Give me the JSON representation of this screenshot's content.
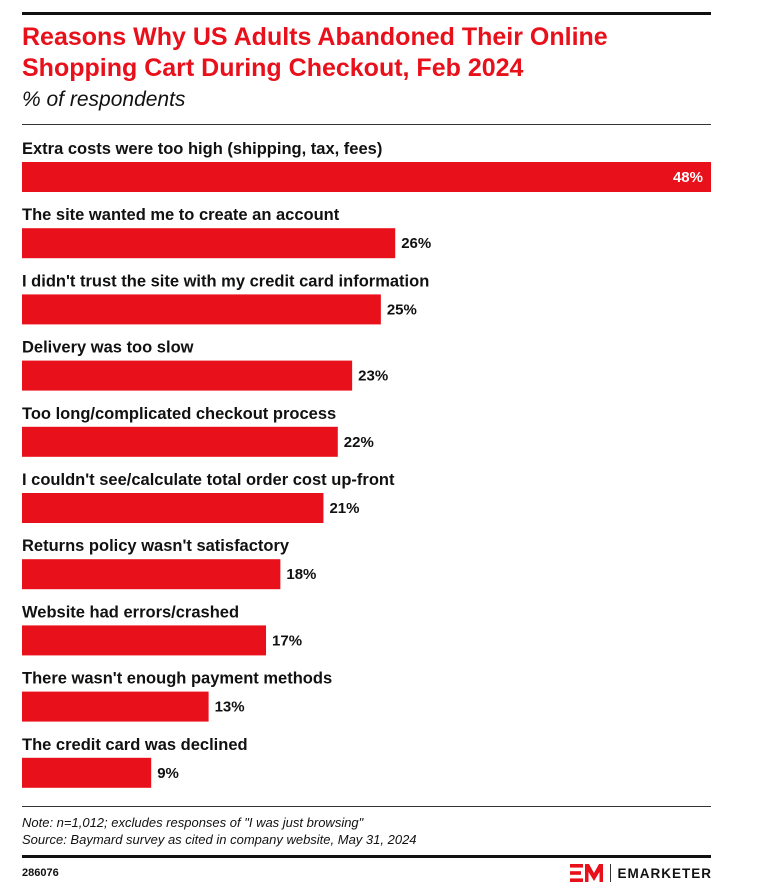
{
  "header": {
    "title": "Reasons Why US Adults Abandoned Their Online Shopping Cart During Checkout, Feb 2024",
    "subtitle": "% of respondents"
  },
  "footer": {
    "note": "Note: n=1,012; excludes responses of \"I was just browsing\"",
    "source": "Source: Baymard survey as cited in company website, May 31, 2024",
    "chart_id": "286076",
    "brand_name": "EMARKETER"
  },
  "colors": {
    "bar": "#e8101a",
    "title": "#e8101a",
    "text": "#111111"
  },
  "chart_data": {
    "type": "bar",
    "orientation": "horizontal",
    "title": "Reasons Why US Adults Abandoned Their Online Shopping Cart During Checkout, Feb 2024",
    "subtitle": "% of respondents",
    "categories": [
      "Extra costs were too high (shipping, tax, fees)",
      "The site wanted me to create an account",
      "I didn't trust the site with my credit card information",
      "Delivery was too slow",
      "Too long/complicated checkout process",
      "I couldn't see/calculate total order cost up-front",
      "Returns policy wasn't satisfactory",
      "Website had errors/crashed",
      "There wasn't enough payment methods",
      "The credit card was declined"
    ],
    "values": [
      48,
      26,
      25,
      23,
      22,
      21,
      18,
      17,
      13,
      9
    ],
    "value_labels": [
      "48%",
      "26%",
      "25%",
      "23%",
      "22%",
      "21%",
      "18%",
      "17%",
      "13%",
      "9%"
    ],
    "xlim": [
      0,
      48
    ],
    "grid": false,
    "legend": "none"
  }
}
